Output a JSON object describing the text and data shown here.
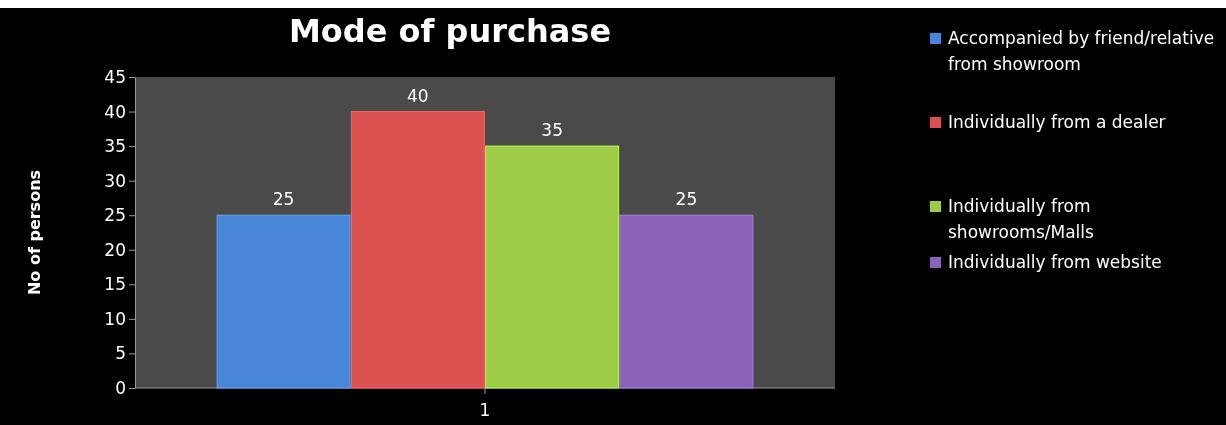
{
  "chart_data": {
    "type": "bar",
    "title": "Mode of purchase",
    "ylabel": "No of persons",
    "categories": [
      "1"
    ],
    "series": [
      {
        "name": "Accompanied by friend/relative from showroom",
        "color": "#4a86d8",
        "values": [
          25
        ]
      },
      {
        "name": "Individually from a dealer",
        "color": "#d9504e",
        "values": [
          40
        ]
      },
      {
        "name": "Individually from showrooms/Malls",
        "color": "#9ccc45",
        "values": [
          35
        ]
      },
      {
        "name": "Individually from website",
        "color": "#8a63b8",
        "values": [
          25
        ]
      }
    ],
    "ylim": [
      0,
      45
    ],
    "yticks": [
      0,
      5,
      10,
      15,
      20,
      25,
      30,
      35,
      40,
      45
    ],
    "data_labels": true,
    "legend": "right",
    "grid": false
  }
}
